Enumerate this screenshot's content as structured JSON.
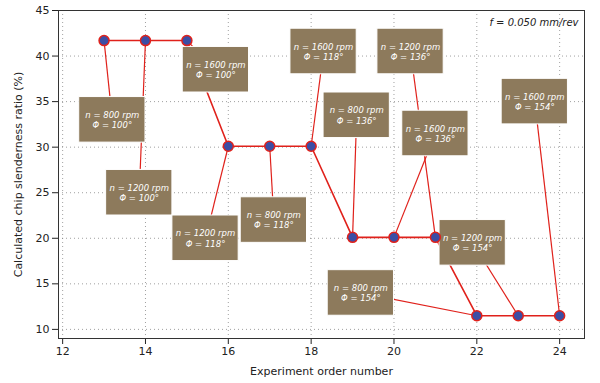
{
  "chart_data": {
    "type": "line",
    "x": [
      13,
      14,
      15,
      16,
      17,
      18,
      19,
      20,
      21,
      22,
      23,
      24
    ],
    "values": [
      41.7,
      41.7,
      41.7,
      30.1,
      30.1,
      30.1,
      20.1,
      20.1,
      20.1,
      11.5,
      11.5,
      11.5
    ],
    "color": "#e0211b",
    "marker": "circle",
    "xlabel": "Experiment order number",
    "ylabel": "Calculated chip slenderness ratio (%)",
    "xlim": [
      11.9,
      24.6
    ],
    "ylim": [
      9,
      45
    ],
    "xticks": [
      12,
      14,
      16,
      18,
      20,
      22,
      24
    ],
    "yticks": [
      10,
      15,
      20,
      25,
      30,
      35,
      40,
      45
    ],
    "grid": true,
    "annotations": [
      {
        "x": 13,
        "text": "n = 800 rpm\nΦ = 100°"
      },
      {
        "x": 14,
        "text": "n = 1200 rpm\nΦ = 100°"
      },
      {
        "x": 15,
        "text": "n = 1600 rpm\nΦ = 100°"
      },
      {
        "x": 16,
        "text": "n = 1200 rpm\nΦ = 118°"
      },
      {
        "x": 17,
        "text": "n = 800 rpm\nΦ = 118°"
      },
      {
        "x": 18,
        "text": "n = 1600 rpm\nΦ = 118°"
      },
      {
        "x": 19,
        "text": "n = 800 rpm\nΦ = 136°"
      },
      {
        "x": 20,
        "text": "n = 1600 rpm\nΦ = 136°"
      },
      {
        "x": 21,
        "text": "n = 1200 rpm\nΦ = 136°"
      },
      {
        "x": 22,
        "text": "n = 800 rpm\nΦ = 154°"
      },
      {
        "x": 23,
        "text": "n = 1200 rpm\nΦ = 154°"
      },
      {
        "x": 24,
        "text": "n = 1600 rpm\nΦ = 154°"
      },
      {
        "text": "f = 0.050 mm/rev"
      }
    ]
  }
}
